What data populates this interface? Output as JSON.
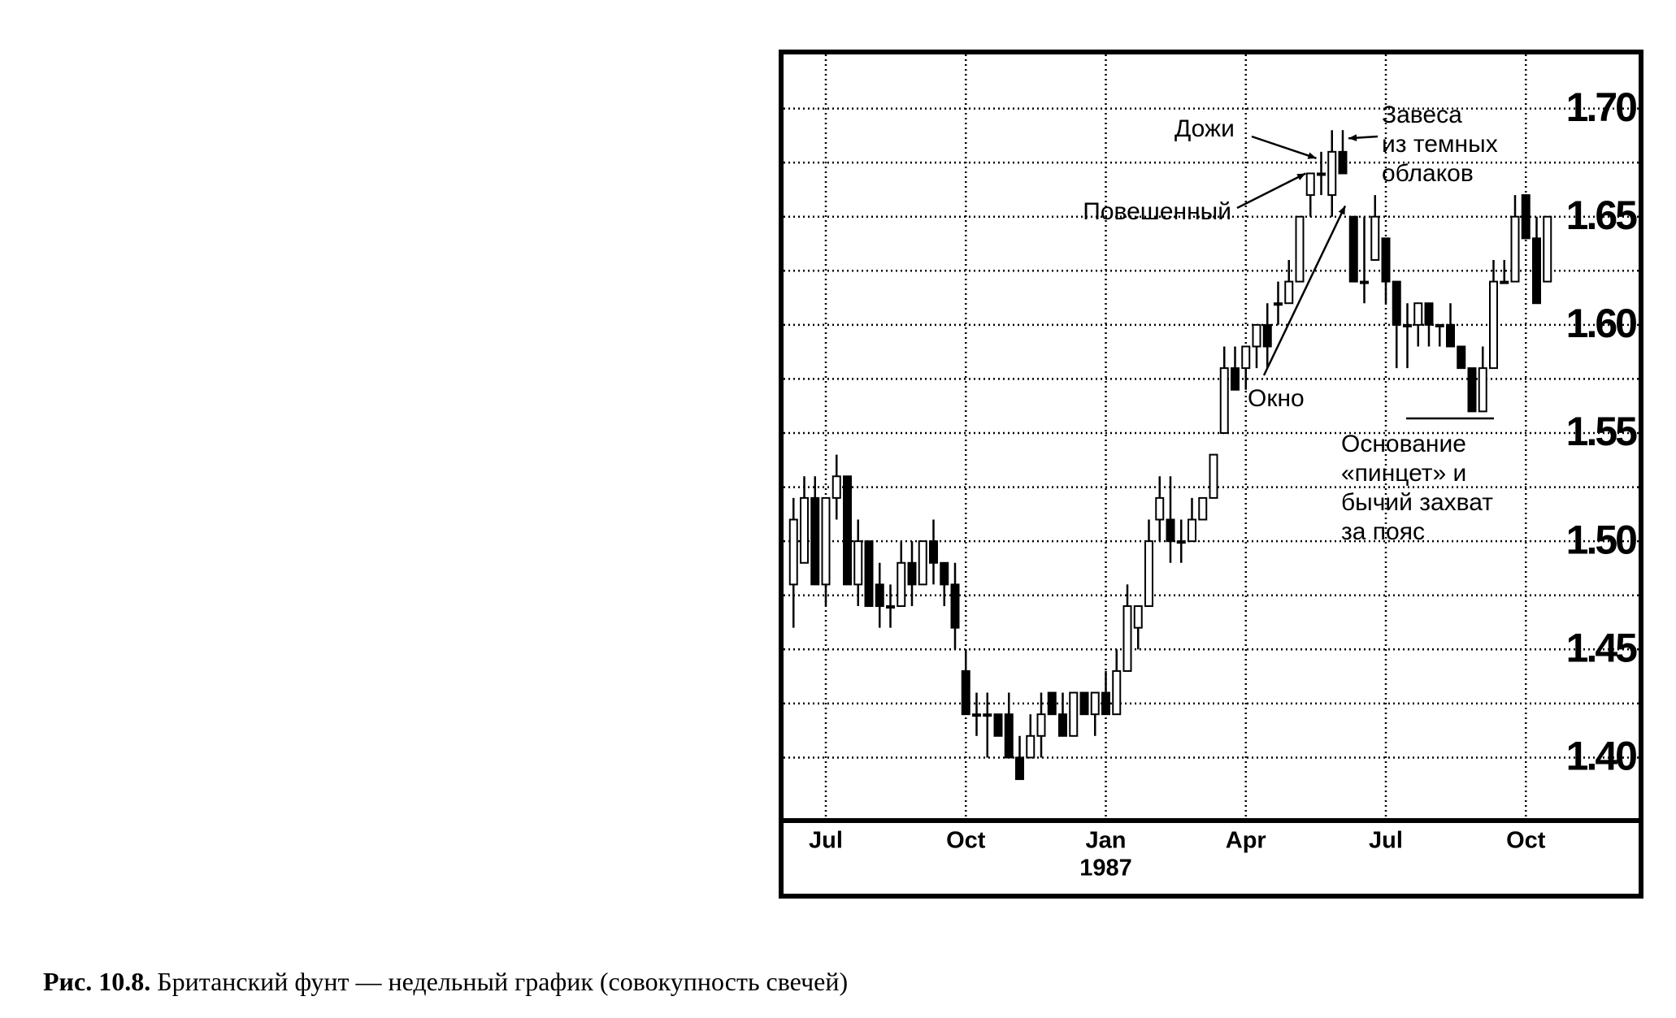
{
  "chart_data": {
    "type": "candlestick",
    "categories": [
      null,
      null,
      null,
      "Jul",
      null,
      null,
      null,
      null,
      null,
      null,
      null,
      null,
      null,
      null,
      null,
      null,
      "Oct",
      null,
      null,
      null,
      null,
      null,
      null,
      null,
      null,
      null,
      null,
      null,
      null,
      "Jan",
      null,
      null,
      null,
      null,
      null,
      null,
      null,
      null,
      null,
      null,
      null,
      null,
      "Apr",
      null,
      null,
      null,
      null,
      null,
      null,
      null,
      null,
      null,
      null,
      null,
      null,
      "Jul",
      null,
      null,
      null,
      null,
      null,
      null,
      null,
      null,
      null,
      null,
      null,
      null,
      "Oct",
      null,
      null
    ],
    "year_label": "1987",
    "open": [
      1.48,
      1.49,
      1.52,
      1.48,
      1.52,
      1.53,
      1.48,
      1.5,
      1.48,
      1.47,
      1.47,
      1.49,
      1.48,
      1.5,
      1.49,
      1.48,
      1.44,
      1.42,
      1.42,
      1.42,
      1.42,
      1.4,
      1.4,
      1.41,
      1.43,
      1.42,
      1.41,
      1.43,
      1.42,
      1.43,
      1.42,
      1.44,
      1.46,
      1.47,
      1.51,
      1.51,
      1.5,
      1.5,
      1.51,
      1.52,
      1.55,
      1.58,
      1.58,
      1.59,
      1.6,
      1.61,
      1.61,
      1.62,
      1.66,
      1.67,
      1.66,
      1.68,
      1.65,
      1.62,
      1.63,
      1.64,
      1.62,
      1.6,
      1.6,
      1.61,
      1.6,
      1.6,
      1.59,
      1.58,
      1.56,
      1.58,
      1.62,
      1.62,
      1.66,
      1.64,
      1.62
    ],
    "high": [
      1.52,
      1.53,
      1.53,
      1.52,
      1.54,
      1.53,
      1.51,
      1.5,
      1.49,
      1.48,
      1.5,
      1.5,
      1.5,
      1.51,
      1.49,
      1.49,
      1.45,
      1.43,
      1.43,
      1.42,
      1.43,
      1.41,
      1.42,
      1.43,
      1.43,
      1.43,
      1.43,
      1.43,
      1.43,
      1.44,
      1.45,
      1.48,
      1.47,
      1.51,
      1.53,
      1.53,
      1.51,
      1.52,
      1.52,
      1.54,
      1.59,
      1.59,
      1.59,
      1.6,
      1.61,
      1.62,
      1.63,
      1.65,
      1.67,
      1.68,
      1.69,
      1.69,
      1.65,
      1.65,
      1.66,
      1.64,
      1.62,
      1.61,
      1.61,
      1.61,
      1.6,
      1.61,
      1.59,
      1.58,
      1.59,
      1.63,
      1.63,
      1.66,
      1.66,
      1.65,
      1.65
    ],
    "low": [
      1.46,
      1.49,
      1.48,
      1.47,
      1.51,
      1.48,
      1.47,
      1.47,
      1.46,
      1.46,
      1.47,
      1.47,
      1.48,
      1.48,
      1.47,
      1.45,
      1.42,
      1.41,
      1.4,
      1.41,
      1.4,
      1.39,
      1.4,
      1.4,
      1.42,
      1.41,
      1.41,
      1.42,
      1.41,
      1.42,
      1.42,
      1.44,
      1.45,
      1.47,
      1.5,
      1.49,
      1.49,
      1.5,
      1.51,
      1.52,
      1.55,
      1.57,
      1.57,
      1.58,
      1.58,
      1.6,
      1.61,
      1.62,
      1.65,
      1.66,
      1.65,
      1.67,
      1.62,
      1.61,
      1.63,
      1.61,
      1.58,
      1.58,
      1.59,
      1.59,
      1.59,
      1.59,
      1.58,
      1.56,
      1.56,
      1.58,
      1.62,
      1.62,
      1.64,
      1.61,
      1.62
    ],
    "close": [
      1.51,
      1.52,
      1.48,
      1.52,
      1.53,
      1.48,
      1.5,
      1.47,
      1.47,
      1.47,
      1.49,
      1.48,
      1.5,
      1.49,
      1.48,
      1.46,
      1.42,
      1.42,
      1.42,
      1.41,
      1.4,
      1.39,
      1.41,
      1.42,
      1.42,
      1.41,
      1.43,
      1.42,
      1.43,
      1.42,
      1.44,
      1.47,
      1.47,
      1.5,
      1.52,
      1.5,
      1.5,
      1.51,
      1.52,
      1.54,
      1.58,
      1.57,
      1.59,
      1.6,
      1.59,
      1.61,
      1.62,
      1.65,
      1.67,
      1.67,
      1.68,
      1.67,
      1.62,
      1.62,
      1.65,
      1.62,
      1.6,
      1.6,
      1.61,
      1.6,
      1.6,
      1.59,
      1.58,
      1.56,
      1.58,
      1.62,
      1.62,
      1.65,
      1.64,
      1.61,
      1.65
    ],
    "up_color": "#ffffff",
    "down_color": "#000000",
    "ylim": [
      1.372,
      1.725
    ],
    "yticks": [
      {
        "value": 1.4,
        "label": "1.40"
      },
      1.45,
      {
        "value": 1.5,
        "label": "1.50"
      },
      1.55,
      {
        "value": 1.6,
        "label": "1.60"
      },
      1.65,
      {
        "value": 1.7,
        "label": "1.70"
      }
    ],
    "grid": true,
    "annotations": {
      "doji": [
        "Дожи"
      ],
      "dark_cloud": [
        "Завеса",
        "из темных",
        "облаков"
      ],
      "hanging_man": [
        "Повешенный"
      ],
      "window": [
        "Окно"
      ],
      "tweezer": [
        "Основание",
        "«пинцет» и",
        "бычий захват",
        "за пояс"
      ]
    }
  },
  "caption": {
    "number": "Рис. 10.8.",
    "text": " Британский фунт — недельный график (совокупность свечей)"
  }
}
